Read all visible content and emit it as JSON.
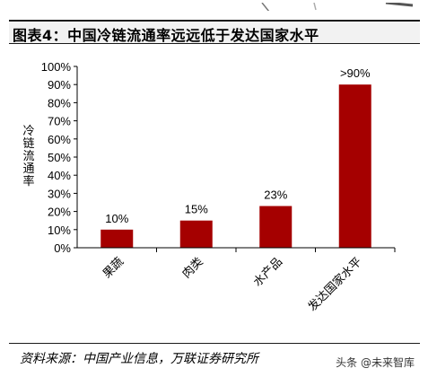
{
  "header": {
    "title": "图表4：中国冷链流通率远远低于发达国家水平"
  },
  "chart_data": {
    "type": "bar",
    "categories": [
      "果蔬",
      "肉类",
      "水产品",
      "发达国家水平"
    ],
    "values": [
      10,
      15,
      23,
      90
    ],
    "data_labels": [
      "10%",
      "15%",
      "23%",
      ">90%"
    ],
    "title": "",
    "xlabel": "",
    "ylabel": "冷链流通率",
    "ylim": [
      0,
      100
    ],
    "yticks": [
      "0%",
      "10%",
      "20%",
      "30%",
      "40%",
      "50%",
      "60%",
      "70%",
      "80%",
      "90%",
      "100%"
    ],
    "grid": false,
    "bar_color": "#a50000"
  },
  "footer": {
    "source": "资料来源：中国产业信息，万联证券研究所",
    "watermark": "头条 @未来智库"
  }
}
